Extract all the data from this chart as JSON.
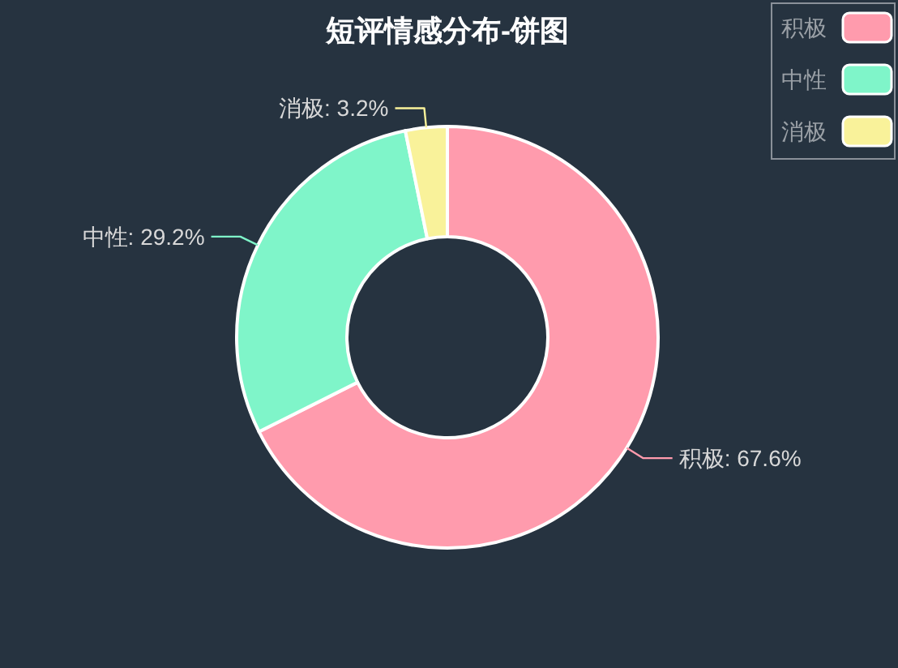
{
  "chart_data": {
    "type": "donut",
    "title": "短评情感分布-饼图",
    "categories": [
      "积极",
      "中性",
      "消极"
    ],
    "values": [
      67.6,
      29.2,
      3.2
    ],
    "colors": [
      "#ff9bad",
      "#7ff5c9",
      "#f9f29a"
    ],
    "value_labels": [
      "积极: 67.6%",
      "中性: 29.2%",
      "消极: 3.2%"
    ],
    "legend": "top right"
  }
}
